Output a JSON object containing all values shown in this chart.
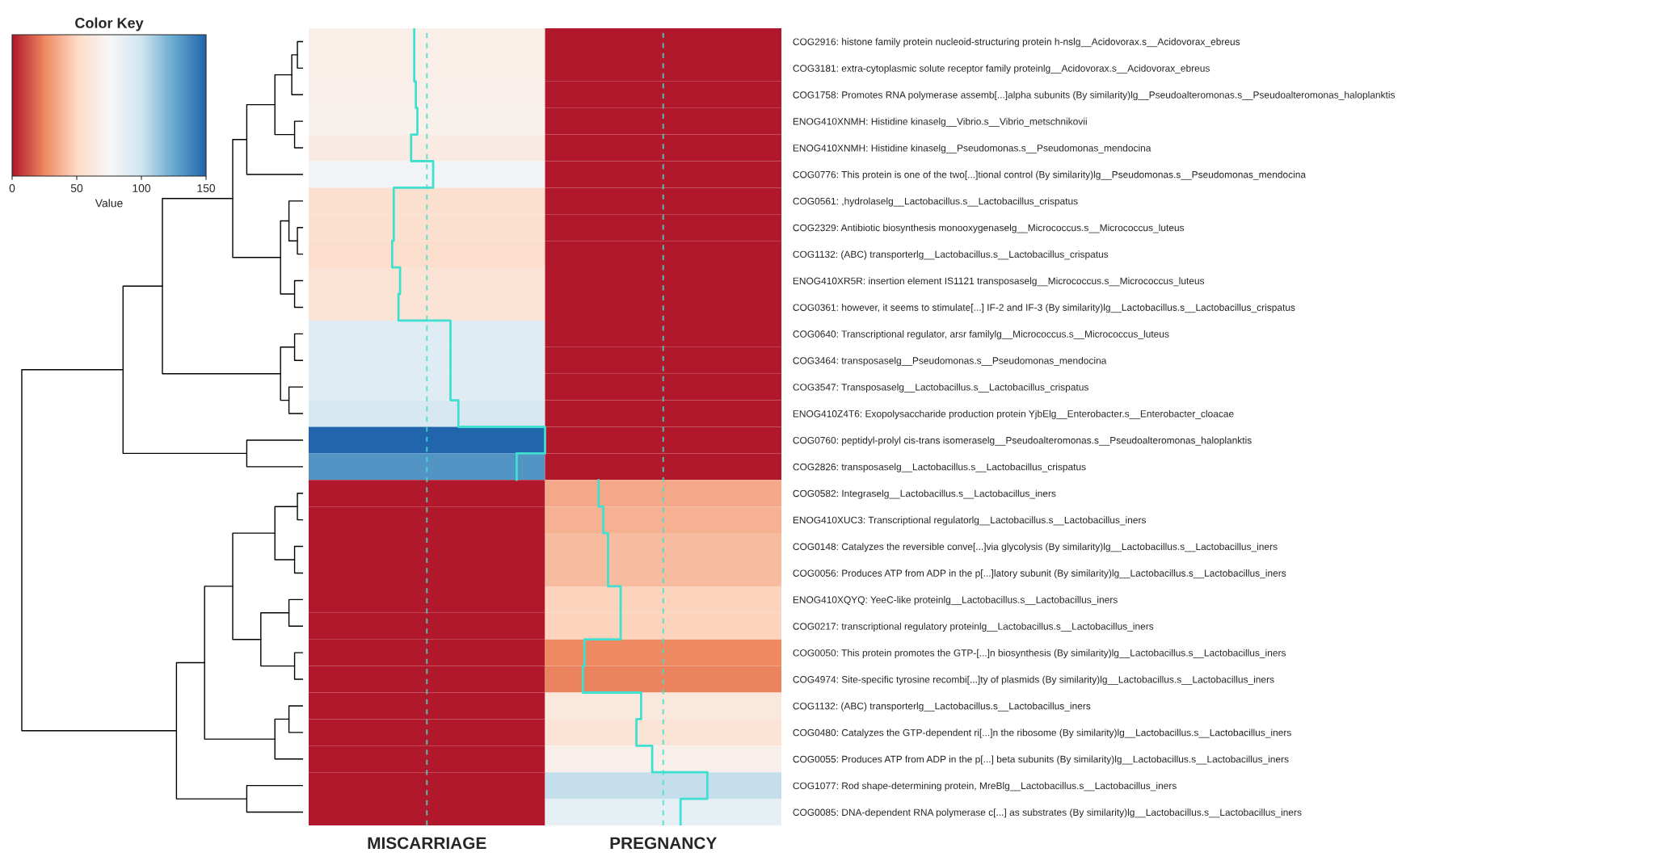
{
  "chart_data": {
    "type": "heatmap",
    "title": "Color Key",
    "clabel": "Value",
    "clim": [
      0,
      150
    ],
    "cticks": [
      0,
      50,
      100,
      150
    ],
    "categories": [
      "MISCARRIAGE",
      "PREGNANCY"
    ],
    "y_categories": [
      "COG2916: histone family protein nucleoid-structuring protein h-nslg__Acidovorax.s__Acidovorax_ebreus",
      "COG3181: extra-cytoplasmic solute receptor family proteinlg__Acidovorax.s__Acidovorax_ebreus",
      "COG1758: Promotes RNA polymerase assemb[...]alpha subunits (By similarity)lg__Pseudoalteromonas.s__Pseudoalteromonas_haloplanktis",
      "ENOG410XNMH: Histidine kinaselg__Vibrio.s__Vibrio_metschnikovii",
      "ENOG410XNMH: Histidine kinaselg__Pseudomonas.s__Pseudomonas_mendocina",
      "COG0776: This protein is one of the two[...]tional control (By similarity)lg__Pseudomonas.s__Pseudomonas_mendocina",
      "COG0561: ,hydrolaselg__Lactobacillus.s__Lactobacillus_crispatus",
      "COG2329: Antibiotic biosynthesis monooxygenaselg__Micrococcus.s__Micrococcus_luteus",
      "COG1132: (ABC) transporterlg__Lactobacillus.s__Lactobacillus_crispatus",
      "ENOG410XR5R: insertion element IS1121 transposaselg__Micrococcus.s__Micrococcus_luteus",
      "COG0361: however, it seems to stimulate[...] IF-2 and IF-3 (By similarity)lg__Lactobacillus.s__Lactobacillus_crispatus",
      "COG0640: Transcriptional regulator, arsr familylg__Micrococcus.s__Micrococcus_luteus",
      "COG3464: transposaselg__Pseudomonas.s__Pseudomonas_mendocina",
      "COG3547: Transposaselg__Lactobacillus.s__Lactobacillus_crispatus",
      "ENOG410Z4T6: Exopolysaccharide production protein YjbElg__Enterobacter.s__Enterobacter_cloacae",
      "COG0760: peptidyl-prolyl cis-trans isomeraselg__Pseudoalteromonas.s__Pseudoalteromonas_haloplanktis",
      "COG2826: transposaselg__Lactobacillus.s__Lactobacillus_crispatus",
      "COG0582: Integraselg__Lactobacillus.s__Lactobacillus_iners",
      "ENOG410XUC3: Transcriptional regulatorlg__Lactobacillus.s__Lactobacillus_iners",
      "COG0148: Catalyzes the reversible conve[...]via glycolysis (By similarity)lg__Lactobacillus.s__Lactobacillus_iners",
      "COG0056: Produces ATP from ADP in the p[...]latory subunit (By similarity)lg__Lactobacillus.s__Lactobacillus_iners",
      "ENOG410XQYQ: YeeC-like proteinlg__Lactobacillus.s__Lactobacillus_iners",
      "COG0217: transcriptional regulatory proteinlg__Lactobacillus.s__Lactobacillus_iners",
      "COG0050: This protein promotes the GTP-[...]n biosynthesis (By similarity)lg__Lactobacillus.s__Lactobacillus_iners",
      "COG4974: Site-specific tyrosine recombi[...]ty of plasmids (By similarity)lg__Lactobacillus.s__Lactobacillus_iners",
      "COG1132: (ABC) transporterlg__Lactobacillus.s__Lactobacillus_iners",
      "COG0480: Catalyzes the GTP-dependent ri[...]n the ribosome (By similarity)lg__Lactobacillus.s__Lactobacillus_iners",
      "COG0055: Produces ATP from ADP in the p[...] beta subunits (By similarity)lg__Lactobacillus.s__Lactobacillus_iners",
      "COG1077: Rod shape-determining protein, MreBlg__Lactobacillus.s__Lactobacillus_iners",
      "COG0085: DNA-dependent RNA polymerase c[...] as substrates (By similarity)lg__Lactobacillus.s__Lactobacillus_iners"
    ],
    "cells": [
      [
        67,
        0
      ],
      [
        67,
        0
      ],
      [
        68,
        0
      ],
      [
        69,
        0
      ],
      [
        65,
        0
      ],
      [
        79,
        0
      ],
      [
        54,
        0
      ],
      [
        54,
        0
      ],
      [
        53,
        0
      ],
      [
        58,
        0
      ],
      [
        57,
        0
      ],
      [
        90,
        0
      ],
      [
        90,
        0
      ],
      [
        90,
        0
      ],
      [
        95,
        0
      ],
      [
        150,
        0
      ],
      [
        132,
        0
      ],
      [
        0,
        34
      ],
      [
        0,
        37
      ],
      [
        0,
        40
      ],
      [
        0,
        40
      ],
      [
        0,
        48
      ],
      [
        0,
        48
      ],
      [
        0,
        25
      ],
      [
        0,
        24
      ],
      [
        0,
        61
      ],
      [
        0,
        58
      ],
      [
        0,
        68
      ],
      [
        0,
        103
      ],
      [
        0,
        86
      ]
    ]
  }
}
